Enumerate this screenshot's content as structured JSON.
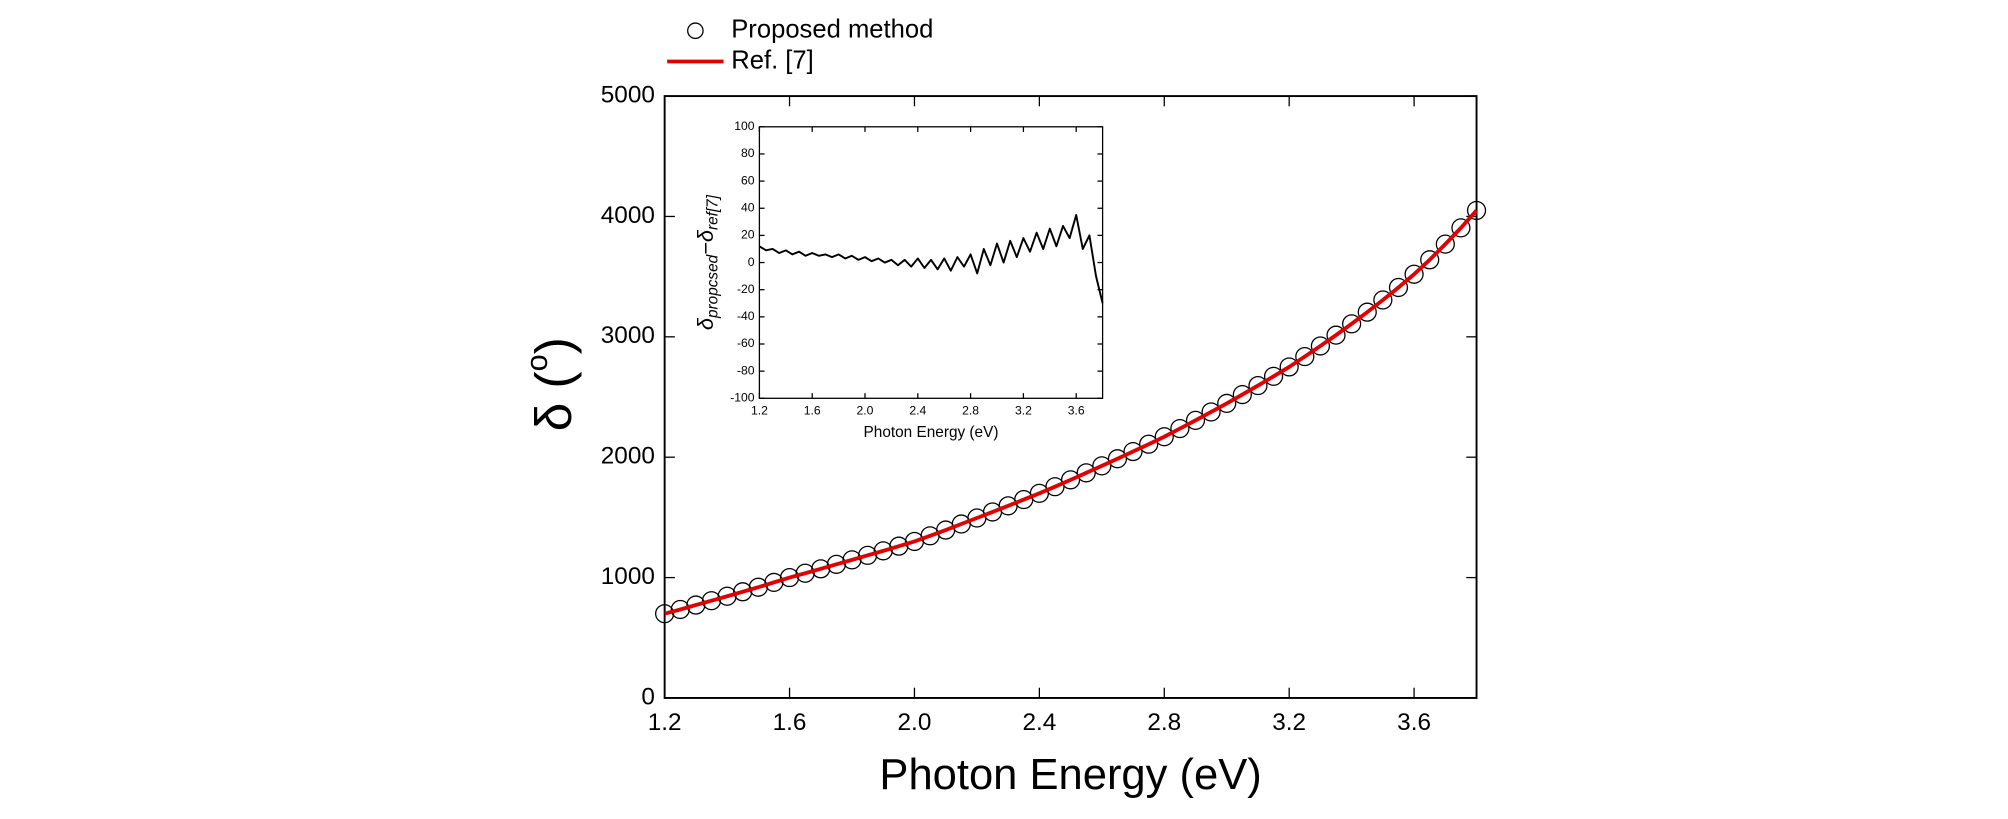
{
  "chart_data": [
    {
      "type": "line",
      "x_label": "Photon Energy (eV)",
      "y_label": [
        "δ (",
        "o",
        ")"
      ],
      "legend": "top",
      "x": [
        1.2,
        1.25,
        1.3,
        1.35,
        1.4,
        1.45,
        1.5,
        1.55,
        1.6,
        1.65,
        1.7,
        1.75,
        1.8,
        1.85,
        1.9,
        1.95,
        2.0,
        2.05,
        2.1,
        2.15,
        2.2,
        2.25,
        2.3,
        2.35,
        2.4,
        2.45,
        2.5,
        2.55,
        2.6,
        2.65,
        2.7,
        2.75,
        2.8,
        2.85,
        2.9,
        2.95,
        3.0,
        3.05,
        3.1,
        3.15,
        3.2,
        3.25,
        3.3,
        3.35,
        3.4,
        3.45,
        3.5,
        3.55,
        3.6,
        3.65,
        3.7,
        3.75,
        3.8
      ],
      "series": [
        {
          "name": "Proposed method",
          "color": "#000000",
          "marker": "circle",
          "values": [
            700,
            735,
            772,
            808,
            845,
            882,
            920,
            960,
            1000,
            1036,
            1073,
            1110,
            1147,
            1185,
            1222,
            1261,
            1300,
            1347,
            1395,
            1445,
            1495,
            1545,
            1596,
            1648,
            1700,
            1755,
            1812,
            1870,
            1928,
            1987,
            2047,
            2108,
            2170,
            2238,
            2306,
            2376,
            2447,
            2520,
            2595,
            2672,
            2750,
            2836,
            2924,
            3014,
            3108,
            3205,
            3306,
            3410,
            3520,
            3640,
            3770,
            3905,
            4050
          ]
        },
        {
          "name": "Ref. [7]",
          "color": "#e00000",
          "marker": "none",
          "values": [
            700,
            735,
            772,
            808,
            845,
            882,
            920,
            960,
            1000,
            1036,
            1073,
            1110,
            1147,
            1185,
            1222,
            1261,
            1300,
            1347,
            1395,
            1445,
            1495,
            1545,
            1596,
            1648,
            1700,
            1755,
            1812,
            1870,
            1928,
            1987,
            2047,
            2108,
            2170,
            2238,
            2306,
            2376,
            2447,
            2520,
            2595,
            2672,
            2750,
            2836,
            2924,
            3014,
            3108,
            3205,
            3306,
            3410,
            3520,
            3640,
            3770,
            3905,
            4050
          ]
        }
      ],
      "xlim": [
        1.2,
        3.8
      ],
      "xticks": [
        1.2,
        1.6,
        {
          "value": 2,
          "label": "2.0"
        },
        2.4,
        2.8,
        3.2,
        3.6
      ],
      "ylim": [
        0,
        5000
      ],
      "yticks": [
        0,
        1000,
        2000,
        3000,
        4000,
        5000
      ]
    },
    {
      "type": "line",
      "x_label": "Photon Energy (eV)",
      "y_label": [
        "δ",
        "propcsed",
        "−δ",
        "ref[7]"
      ],
      "x": [
        1.2,
        1.25,
        1.3,
        1.35,
        1.4,
        1.45,
        1.5,
        1.55,
        1.6,
        1.65,
        1.7,
        1.75,
        1.8,
        1.85,
        1.9,
        1.95,
        2.0,
        2.05,
        2.1,
        2.15,
        2.2,
        2.25,
        2.3,
        2.35,
        2.4,
        2.45,
        2.5,
        2.55,
        2.6,
        2.65,
        2.7,
        2.75,
        2.8,
        2.85,
        2.9,
        2.95,
        3.0,
        3.05,
        3.1,
        3.15,
        3.2,
        3.25,
        3.3,
        3.35,
        3.4,
        3.45,
        3.5,
        3.55,
        3.6,
        3.65,
        3.7,
        3.75,
        3.8
      ],
      "series": [
        {
          "color": "#000000",
          "marker": "none",
          "values": [
            12,
            9,
            10,
            7,
            9,
            6,
            8,
            5,
            7,
            5,
            6,
            4,
            6,
            3,
            5,
            2,
            4,
            1,
            3,
            0,
            2,
            -2,
            2,
            -3,
            3,
            -4,
            2,
            -5,
            3,
            -6,
            4,
            -3,
            6,
            -8,
            10,
            -2,
            14,
            0,
            16,
            4,
            18,
            8,
            22,
            10,
            25,
            12,
            27,
            18,
            35,
            10,
            20,
            -10,
            -30
          ]
        }
      ],
      "xlim": [
        1.2,
        3.8
      ],
      "xticks": [
        1.2,
        1.6,
        {
          "value": 2,
          "label": "2.0"
        },
        2.4,
        2.8,
        3.2,
        3.6
      ],
      "ylim": [
        -100,
        100
      ],
      "yticks": [
        -100,
        -80,
        -60,
        -40,
        -20,
        0,
        20,
        40,
        60,
        80,
        100
      ]
    }
  ]
}
